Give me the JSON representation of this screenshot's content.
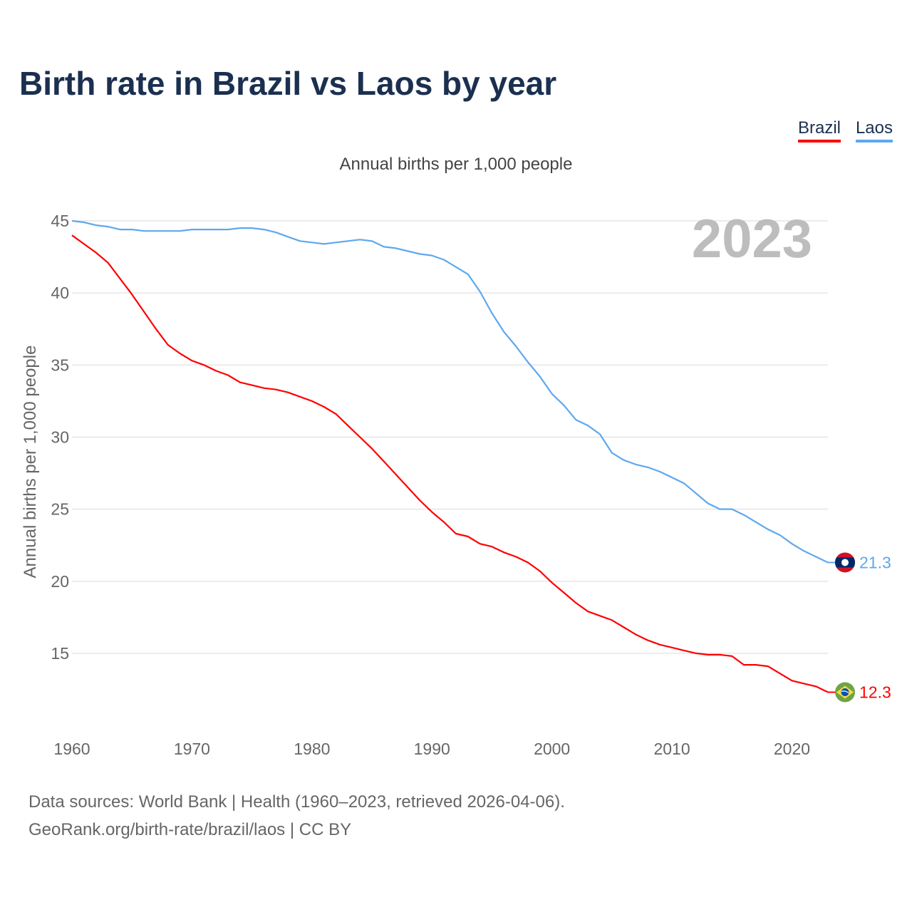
{
  "title": "Birth rate in Brazil vs Laos by year",
  "subtitle": "Annual births per 1,000 people",
  "highlight_year": "2023",
  "legend": [
    "Brazil",
    "Laos"
  ],
  "source_line1": "Data sources: World Bank | Health (1960–2023, retrieved 2026-04-06).",
  "source_line2": "GeoRank.org/birth-rate/brazil/laos | CC BY",
  "chart_data": {
    "type": "line",
    "title": "Birth rate in Brazil vs Laos by year",
    "xlabel": "",
    "ylabel": "Annual births per 1,000 people",
    "xlim": [
      1960,
      2023
    ],
    "ylim": [
      10,
      45
    ],
    "yticks": [
      15,
      20,
      25,
      30,
      35,
      40,
      45
    ],
    "xticks": [
      1960,
      1970,
      1980,
      1990,
      2000,
      2010,
      2020
    ],
    "grid": true,
    "legend_position": "top-right",
    "x_start": 1960,
    "series": [
      {
        "name": "Brazil",
        "color": "#ff0000",
        "end_label": "12.3",
        "flag": "brazil-flag",
        "values": [
          44.0,
          43.4,
          42.8,
          42.1,
          41.0,
          39.9,
          38.7,
          37.5,
          36.4,
          35.8,
          35.3,
          35.0,
          34.6,
          34.3,
          33.8,
          33.6,
          33.4,
          33.3,
          33.1,
          32.8,
          32.5,
          32.1,
          31.6,
          30.8,
          30.0,
          29.2,
          28.3,
          27.4,
          26.5,
          25.6,
          24.8,
          24.1,
          23.3,
          23.1,
          22.6,
          22.4,
          22.0,
          21.7,
          21.3,
          20.7,
          19.9,
          19.2,
          18.5,
          17.9,
          17.6,
          17.3,
          16.8,
          16.3,
          15.9,
          15.6,
          15.4,
          15.2,
          15.0,
          14.9,
          14.9,
          14.8,
          14.2,
          14.2,
          14.1,
          13.6,
          13.1,
          12.9,
          12.7,
          12.3
        ]
      },
      {
        "name": "Laos",
        "color": "#5ea8ee",
        "end_label": "21.3",
        "flag": "laos-flag",
        "values": [
          45.0,
          44.9,
          44.7,
          44.6,
          44.4,
          44.4,
          44.3,
          44.3,
          44.3,
          44.3,
          44.4,
          44.4,
          44.4,
          44.4,
          44.5,
          44.5,
          44.4,
          44.2,
          43.9,
          43.6,
          43.5,
          43.4,
          43.5,
          43.6,
          43.7,
          43.6,
          43.2,
          43.1,
          42.9,
          42.7,
          42.6,
          42.3,
          41.8,
          41.3,
          40.1,
          38.6,
          37.3,
          36.3,
          35.2,
          34.2,
          33.0,
          32.2,
          31.2,
          30.8,
          30.2,
          28.9,
          28.4,
          28.1,
          27.9,
          27.6,
          27.2,
          26.8,
          26.1,
          25.4,
          25.0,
          25.0,
          24.6,
          24.1,
          23.6,
          23.2,
          22.6,
          22.1,
          21.7,
          21.3
        ]
      }
    ]
  }
}
